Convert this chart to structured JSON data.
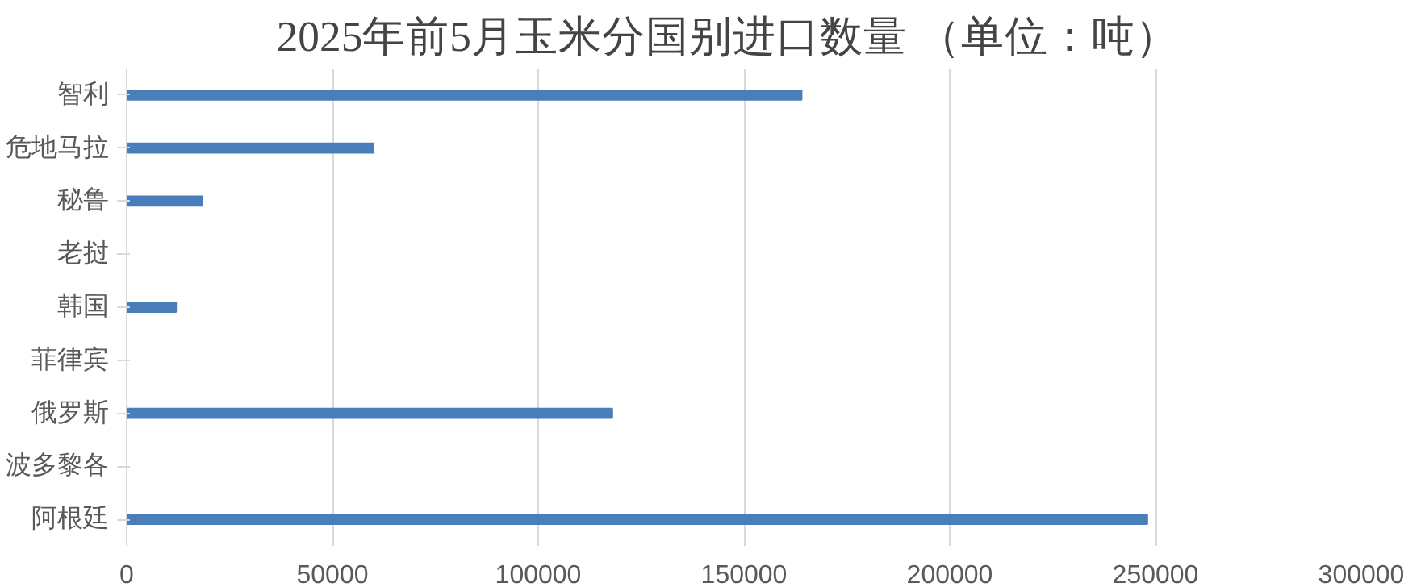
{
  "chart_data": {
    "type": "bar",
    "orientation": "horizontal",
    "title": "2025年前5月玉米分国别进口数量    （单位：吨）",
    "categories": [
      "智利",
      "危地马拉",
      "秘鲁",
      "老挝",
      "韩国",
      "菲律宾",
      "俄罗斯",
      "波多黎各",
      "阿根廷"
    ],
    "values": [
      164000,
      60000,
      18400,
      null,
      12000,
      null,
      118000,
      null,
      248000
    ],
    "color": "#4a7ebb",
    "xlim": [
      0,
      300000
    ],
    "xticks": [
      0,
      50000,
      100000,
      150000,
      200000,
      250000,
      300000
    ],
    "grid": "x"
  }
}
